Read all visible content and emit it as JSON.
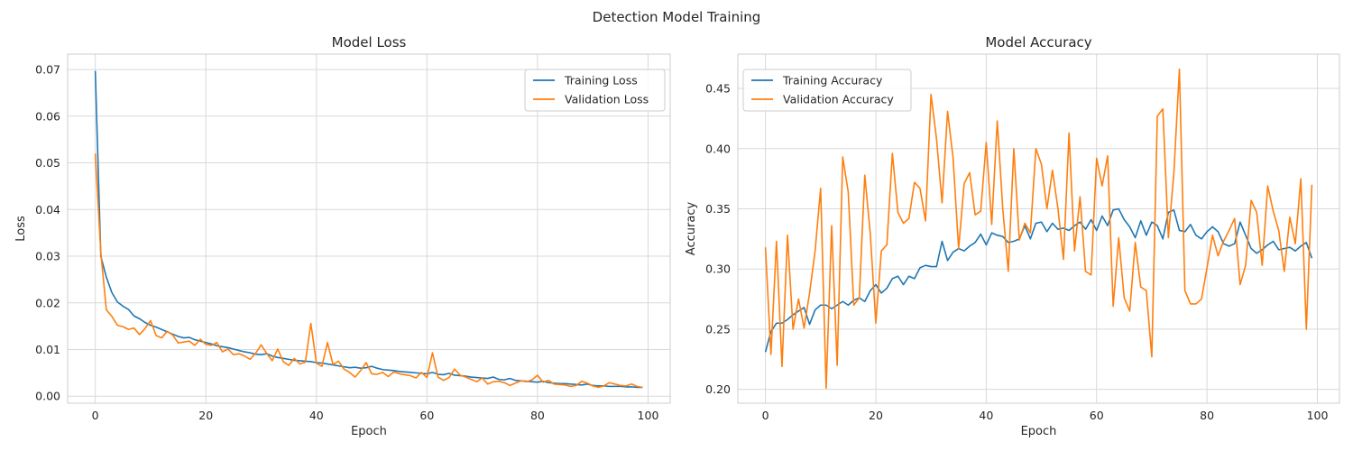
{
  "figure": {
    "suptitle": "Detection Model Training"
  },
  "colors": {
    "training": "#1f77b4",
    "validation": "#ff7f0e",
    "grid": "#d9d9d9",
    "frame": "#cccccc"
  },
  "chart_data": [
    {
      "type": "line",
      "title": "Model Loss",
      "xlabel": "Epoch",
      "ylabel": "Loss",
      "xlim": [
        -5,
        104
      ],
      "ylim": [
        -0.0015,
        0.0733
      ],
      "xticks": [
        0,
        20,
        40,
        60,
        80,
        100
      ],
      "xtick_labels": [
        "0",
        "20",
        "40",
        "60",
        "80",
        "100"
      ],
      "yticks": [
        0.0,
        0.01,
        0.02,
        0.03,
        0.04,
        0.05,
        0.06,
        0.07
      ],
      "ytick_labels": [
        "0.00",
        "0.01",
        "0.02",
        "0.03",
        "0.04",
        "0.05",
        "0.06",
        "0.07"
      ],
      "grid": true,
      "legend_position": "top-right",
      "series": [
        {
          "name": "Training Loss",
          "values": [
            0.0697,
            0.03,
            0.0255,
            0.0222,
            0.0202,
            0.0193,
            0.0186,
            0.0172,
            0.0166,
            0.0158,
            0.0152,
            0.0148,
            0.0143,
            0.0138,
            0.0133,
            0.0128,
            0.0125,
            0.0126,
            0.0121,
            0.0118,
            0.0115,
            0.0112,
            0.0108,
            0.0106,
            0.0104,
            0.0101,
            0.0098,
            0.0095,
            0.0093,
            0.009,
            0.0089,
            0.0091,
            0.0086,
            0.0083,
            0.0081,
            0.0079,
            0.0077,
            0.0076,
            0.0075,
            0.0074,
            0.0072,
            0.0071,
            0.0069,
            0.0067,
            0.0065,
            0.0063,
            0.0061,
            0.0062,
            0.006,
            0.0061,
            0.0064,
            0.006,
            0.0057,
            0.0056,
            0.0055,
            0.0053,
            0.0052,
            0.0051,
            0.005,
            0.0049,
            0.0048,
            0.0051,
            0.0047,
            0.0046,
            0.0049,
            0.0045,
            0.0044,
            0.0043,
            0.0041,
            0.004,
            0.0039,
            0.0038,
            0.0041,
            0.0036,
            0.0035,
            0.0038,
            0.0034,
            0.0033,
            0.0032,
            0.0031,
            0.003,
            0.0032,
            0.0029,
            0.0028,
            0.0027,
            0.0027,
            0.0026,
            0.0025,
            0.0024,
            0.0026,
            0.0023,
            0.0022,
            0.0022,
            0.0021,
            0.0021,
            0.0021,
            0.002,
            0.002,
            0.0019,
            0.0019
          ]
        },
        {
          "name": "Validation Loss",
          "values": [
            0.052,
            0.0308,
            0.0185,
            0.0171,
            0.0152,
            0.0149,
            0.0143,
            0.0146,
            0.0132,
            0.0145,
            0.0162,
            0.013,
            0.0125,
            0.0139,
            0.0131,
            0.0114,
            0.0116,
            0.0118,
            0.0109,
            0.0122,
            0.0111,
            0.0109,
            0.0115,
            0.0095,
            0.0101,
            0.0089,
            0.0091,
            0.0086,
            0.0079,
            0.0092,
            0.011,
            0.0092,
            0.0076,
            0.0101,
            0.0074,
            0.0066,
            0.0081,
            0.0069,
            0.0073,
            0.0156,
            0.0071,
            0.0064,
            0.0115,
            0.0068,
            0.0075,
            0.0058,
            0.0051,
            0.0041,
            0.0055,
            0.0072,
            0.0048,
            0.0047,
            0.0051,
            0.0042,
            0.0052,
            0.0048,
            0.0046,
            0.0044,
            0.0039,
            0.0051,
            0.004,
            0.0093,
            0.0041,
            0.0034,
            0.004,
            0.0058,
            0.0045,
            0.0041,
            0.0036,
            0.0031,
            0.0039,
            0.0026,
            0.0031,
            0.0032,
            0.0029,
            0.0023,
            0.0028,
            0.0033,
            0.0031,
            0.0035,
            0.0045,
            0.003,
            0.0034,
            0.0026,
            0.0025,
            0.0024,
            0.0021,
            0.0023,
            0.0032,
            0.0028,
            0.0022,
            0.0019,
            0.0022,
            0.0029,
            0.0026,
            0.0023,
            0.0022,
            0.0026,
            0.0021,
            0.0019
          ]
        }
      ]
    },
    {
      "type": "line",
      "title": "Model Accuracy",
      "xlabel": "Epoch",
      "ylabel": "Accuracy",
      "xlim": [
        -5,
        104
      ],
      "ylim": [
        0.1885,
        0.4785
      ],
      "xticks": [
        0,
        20,
        40,
        60,
        80,
        100
      ],
      "xtick_labels": [
        "0",
        "20",
        "40",
        "60",
        "80",
        "100"
      ],
      "yticks": [
        0.2,
        0.25,
        0.3,
        0.35,
        0.4,
        0.45
      ],
      "ytick_labels": [
        "0.20",
        "0.25",
        "0.30",
        "0.35",
        "0.40",
        "0.45"
      ],
      "grid": true,
      "legend_position": "top-left",
      "series": [
        {
          "name": "Training Accuracy",
          "values": [
            0.231,
            0.248,
            0.255,
            0.255,
            0.258,
            0.262,
            0.265,
            0.268,
            0.254,
            0.266,
            0.27,
            0.27,
            0.267,
            0.27,
            0.273,
            0.27,
            0.274,
            0.276,
            0.273,
            0.282,
            0.287,
            0.28,
            0.284,
            0.292,
            0.294,
            0.287,
            0.294,
            0.292,
            0.301,
            0.303,
            0.302,
            0.302,
            0.323,
            0.307,
            0.314,
            0.317,
            0.315,
            0.319,
            0.322,
            0.329,
            0.32,
            0.33,
            0.328,
            0.327,
            0.322,
            0.323,
            0.325,
            0.336,
            0.325,
            0.338,
            0.339,
            0.331,
            0.338,
            0.333,
            0.334,
            0.332,
            0.336,
            0.339,
            0.333,
            0.341,
            0.332,
            0.344,
            0.336,
            0.349,
            0.35,
            0.341,
            0.335,
            0.326,
            0.34,
            0.328,
            0.339,
            0.336,
            0.325,
            0.347,
            0.349,
            0.332,
            0.331,
            0.337,
            0.328,
            0.325,
            0.331,
            0.335,
            0.331,
            0.321,
            0.319,
            0.321,
            0.339,
            0.328,
            0.317,
            0.313,
            0.316,
            0.32,
            0.323,
            0.316,
            0.317,
            0.318,
            0.315,
            0.319,
            0.322,
            0.309
          ]
        },
        {
          "name": "Validation Accuracy",
          "values": [
            0.318,
            0.229,
            0.323,
            0.219,
            0.328,
            0.25,
            0.275,
            0.251,
            0.28,
            0.315,
            0.367,
            0.201,
            0.336,
            0.22,
            0.393,
            0.364,
            0.27,
            0.276,
            0.378,
            0.329,
            0.255,
            0.315,
            0.32,
            0.396,
            0.347,
            0.338,
            0.342,
            0.372,
            0.367,
            0.34,
            0.445,
            0.408,
            0.355,
            0.431,
            0.392,
            0.317,
            0.371,
            0.38,
            0.345,
            0.348,
            0.405,
            0.337,
            0.423,
            0.35,
            0.298,
            0.4,
            0.324,
            0.338,
            0.33,
            0.4,
            0.387,
            0.35,
            0.382,
            0.35,
            0.308,
            0.413,
            0.315,
            0.36,
            0.298,
            0.295,
            0.392,
            0.369,
            0.394,
            0.269,
            0.326,
            0.276,
            0.265,
            0.322,
            0.285,
            0.282,
            0.227,
            0.427,
            0.433,
            0.326,
            0.38,
            0.466,
            0.282,
            0.271,
            0.271,
            0.275,
            0.301,
            0.328,
            0.311,
            0.323,
            0.332,
            0.342,
            0.287,
            0.303,
            0.357,
            0.347,
            0.303,
            0.369,
            0.348,
            0.332,
            0.298,
            0.343,
            0.321,
            0.375,
            0.25,
            0.37
          ]
        }
      ]
    }
  ]
}
